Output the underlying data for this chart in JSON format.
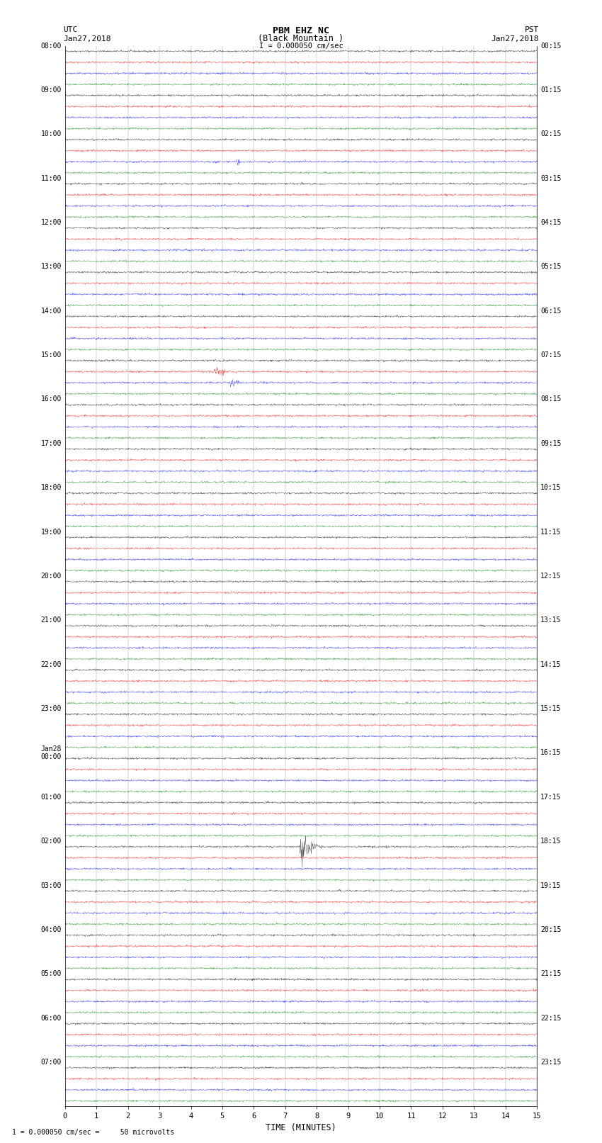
{
  "title_line1": "PBM EHZ NC",
  "title_line2": "(Black Mountain )",
  "title_scale": "I = 0.000050 cm/sec",
  "left_header": "UTC",
  "left_date": "Jan27,2018",
  "right_header": "PST",
  "right_date": "Jan27,2018",
  "bottom_label": "TIME (MINUTES)",
  "bottom_note": "1 = 0.000050 cm/sec =     50 microvolts",
  "xlabel_ticks": [
    0,
    1,
    2,
    3,
    4,
    5,
    6,
    7,
    8,
    9,
    10,
    11,
    12,
    13,
    14,
    15
  ],
  "trace_colors": [
    "black",
    "red",
    "blue",
    "green"
  ],
  "num_hours": 24,
  "utc_labels": [
    "08:00",
    "09:00",
    "10:00",
    "11:00",
    "12:00",
    "13:00",
    "14:00",
    "15:00",
    "16:00",
    "17:00",
    "18:00",
    "19:00",
    "20:00",
    "21:00",
    "22:00",
    "23:00",
    "Jan28\n00:00",
    "01:00",
    "02:00",
    "03:00",
    "04:00",
    "05:00",
    "06:00",
    "07:00"
  ],
  "pst_labels": [
    "00:15",
    "01:15",
    "02:15",
    "03:15",
    "04:15",
    "05:15",
    "06:15",
    "07:15",
    "08:15",
    "09:15",
    "10:15",
    "11:15",
    "12:15",
    "13:15",
    "14:15",
    "15:15",
    "16:15",
    "17:15",
    "18:15",
    "19:15",
    "20:15",
    "21:15",
    "22:15",
    "23:15"
  ],
  "bg_color": "white",
  "seed": 42,
  "events": [
    {
      "hour": 2,
      "color": "blue",
      "minute": 5.5,
      "amplitude": 6.0
    },
    {
      "hour": 7,
      "color": "blue",
      "minute": 5.3,
      "amplitude": 12.0
    },
    {
      "hour": 7,
      "color": "red",
      "minute": 4.8,
      "amplitude": 10.0
    },
    {
      "hour": 7,
      "color": "red",
      "minute": 5.0,
      "amplitude": 9.0
    },
    {
      "hour": 18,
      "color": "black",
      "minute": 7.5,
      "amplitude": 25.0
    }
  ]
}
